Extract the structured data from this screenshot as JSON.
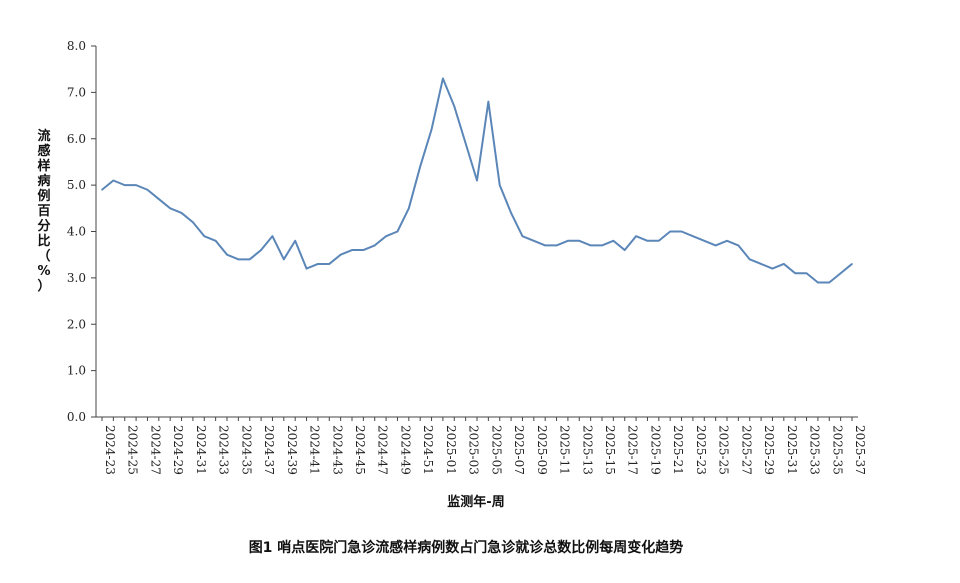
{
  "chart_data": {
    "type": "line",
    "title": "",
    "xlabel": "监测年-周",
    "ylabel": "流感样病例百分比（%）",
    "ylim": [
      0,
      8
    ],
    "yticks": [
      "0.0",
      "1.0",
      "2.0",
      "3.0",
      "4.0",
      "5.0",
      "6.0",
      "7.0",
      "8.0"
    ],
    "line_color": "#5b86b8",
    "grid": false,
    "x": [
      "2024-23",
      "2024-24",
      "2024-25",
      "2024-26",
      "2024-27",
      "2024-28",
      "2024-29",
      "2024-30",
      "2024-31",
      "2024-32",
      "2024-33",
      "2024-34",
      "2024-35",
      "2024-36",
      "2024-37",
      "2024-38",
      "2024-39",
      "2024-40",
      "2024-41",
      "2024-42",
      "2024-43",
      "2024-44",
      "2024-45",
      "2024-46",
      "2024-47",
      "2024-48",
      "2024-49",
      "2024-50",
      "2024-51",
      "2024-52",
      "2025-01",
      "2025-02",
      "2025-03",
      "2025-04",
      "2025-05",
      "2025-06",
      "2025-07",
      "2025-08",
      "2025-09",
      "2025-10",
      "2025-11",
      "2025-12",
      "2025-13",
      "2025-14",
      "2025-15",
      "2025-16",
      "2025-17",
      "2025-18",
      "2025-19",
      "2025-20",
      "2025-21",
      "2025-22",
      "2025-23",
      "2025-24",
      "2025-25",
      "2025-26",
      "2025-27",
      "2025-28",
      "2025-29",
      "2025-30",
      "2025-31",
      "2025-32",
      "2025-33",
      "2025-34",
      "2025-35",
      "2025-36",
      "2025-37"
    ],
    "x_tick_labels": [
      "2024-23",
      "2024-25",
      "2024-27",
      "2024-29",
      "2024-31",
      "2024-33",
      "2024-35",
      "2024-37",
      "2024-39",
      "2024-41",
      "2024-43",
      "2024-45",
      "2024-47",
      "2024-49",
      "2024-51",
      "2025-01",
      "2025-03",
      "2025-05",
      "2025-07",
      "2025-09",
      "2025-11",
      "2025-13",
      "2025-15",
      "2025-17",
      "2025-19",
      "2025-21",
      "2025-23",
      "2025-25",
      "2025-27",
      "2025-29",
      "2025-31",
      "2025-33",
      "2025-35",
      "2025-37"
    ],
    "values": [
      4.9,
      5.1,
      5.0,
      5.0,
      4.9,
      4.7,
      4.5,
      4.4,
      4.2,
      3.9,
      3.8,
      3.5,
      3.4,
      3.4,
      3.6,
      3.9,
      3.4,
      3.8,
      3.2,
      3.3,
      3.3,
      3.5,
      3.6,
      3.6,
      3.7,
      3.9,
      4.0,
      4.5,
      5.4,
      6.2,
      7.3,
      6.7,
      5.9,
      5.1,
      6.8,
      5.0,
      4.4,
      3.9,
      3.8,
      3.7,
      3.7,
      3.8,
      3.8,
      3.7,
      3.7,
      3.8,
      3.6,
      3.9,
      3.8,
      3.8,
      4.0,
      4.0,
      3.9,
      3.8,
      3.7,
      3.8,
      3.7,
      3.4,
      3.3,
      3.2,
      3.3,
      3.1,
      3.1,
      2.9,
      2.9,
      3.1,
      3.3
    ]
  },
  "caption": "图1 哨点医院门急诊流感样病例数占门急诊就诊总数比例每周变化趋势"
}
